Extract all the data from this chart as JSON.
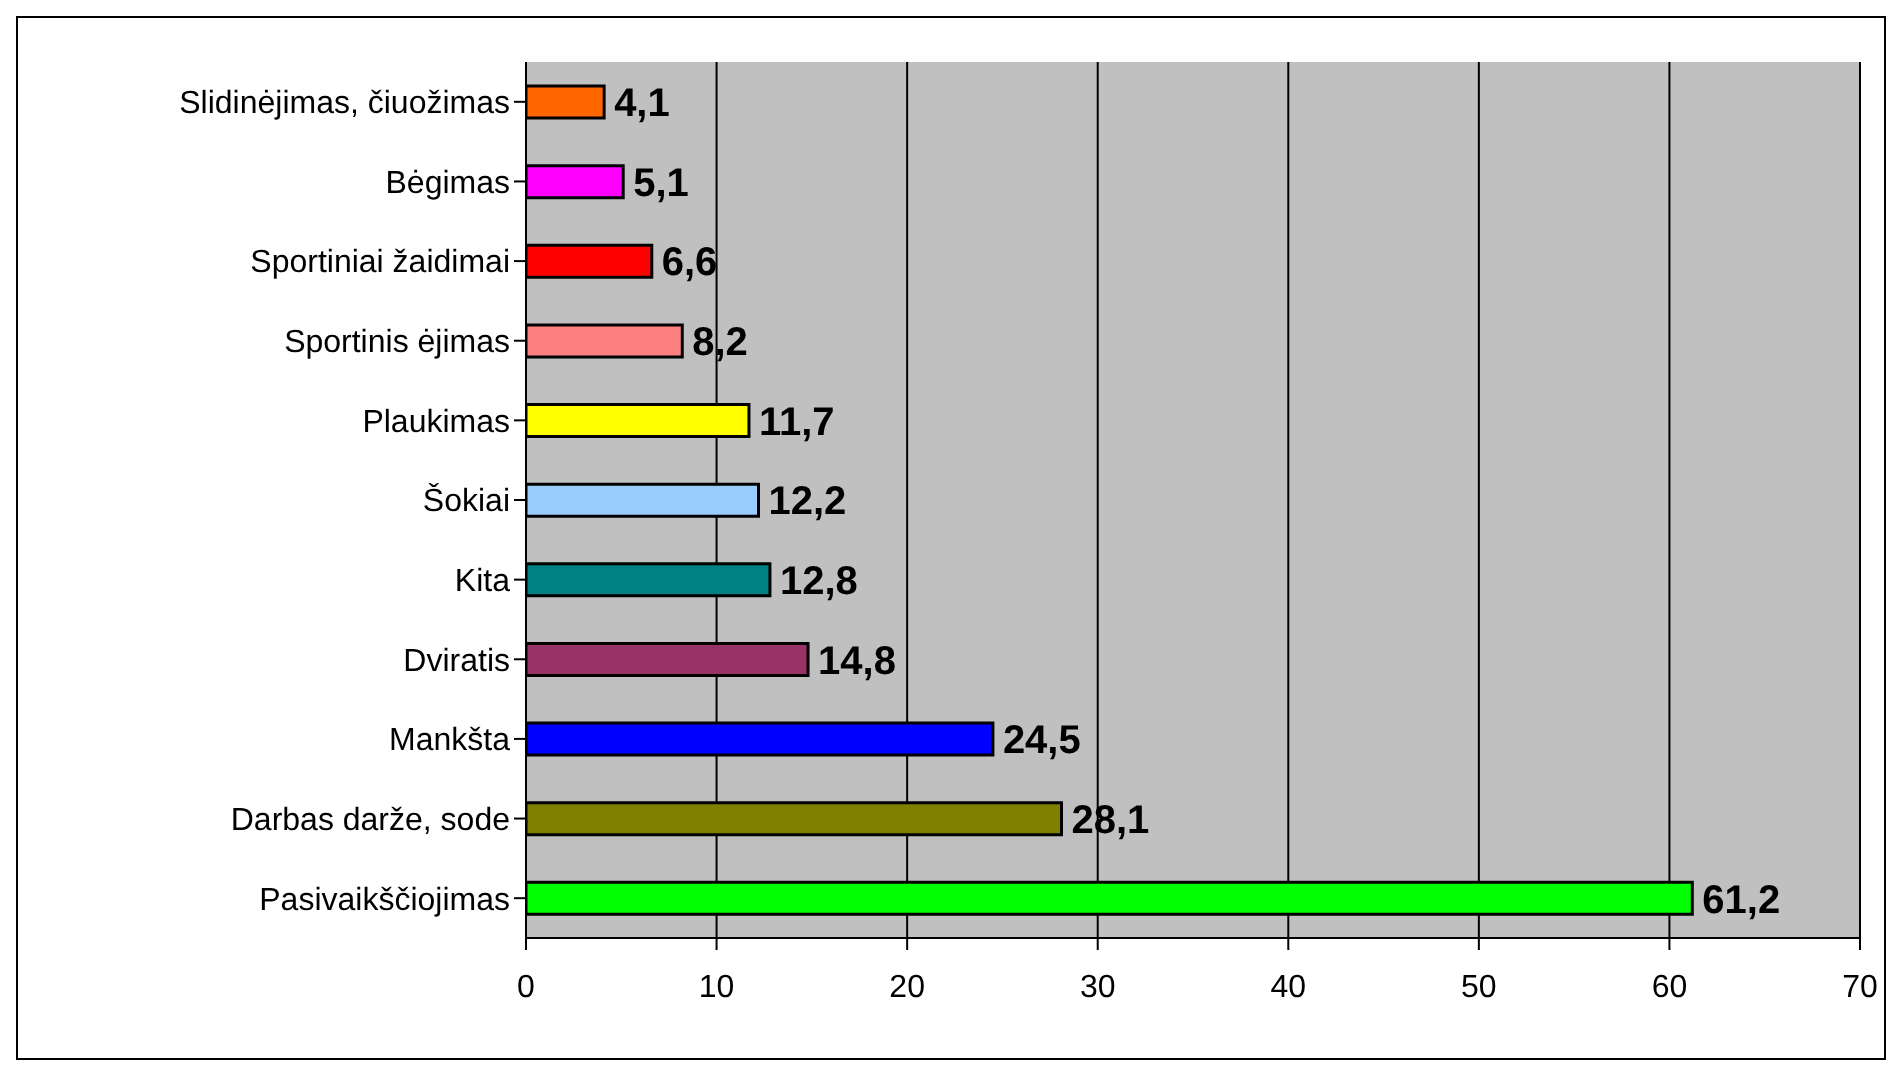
{
  "chart_data": {
    "type": "bar",
    "orientation": "horizontal",
    "categories": [
      "Slidinėjimas, čiuožimas",
      "Bėgimas",
      "Sportiniai žaidimai",
      "Sportinis ėjimas",
      "Plaukimas",
      "Šokiai",
      "Kita",
      "Dviratis",
      "Mankšta",
      "Darbas darže, sode",
      "Pasivaikščiojimas"
    ],
    "values": [
      4.1,
      5.1,
      6.6,
      8.2,
      11.7,
      12.2,
      12.8,
      14.8,
      24.5,
      28.1,
      61.2
    ],
    "colors": [
      "#ff6600",
      "#ff00ff",
      "#ff0000",
      "#ff8080",
      "#ffff00",
      "#99ccff",
      "#008080",
      "#993366",
      "#0000ff",
      "#808000",
      "#00ff00"
    ],
    "xlim": [
      0,
      70
    ],
    "xticks": [
      0,
      10,
      20,
      30,
      40,
      50,
      60,
      70
    ],
    "value_labels": [
      "4,1",
      "5,1",
      "6,6",
      "8,2",
      "11,7",
      "12,2",
      "12,8",
      "14,8",
      "24,5",
      "28,1",
      "61,2"
    ],
    "grid": "x"
  }
}
